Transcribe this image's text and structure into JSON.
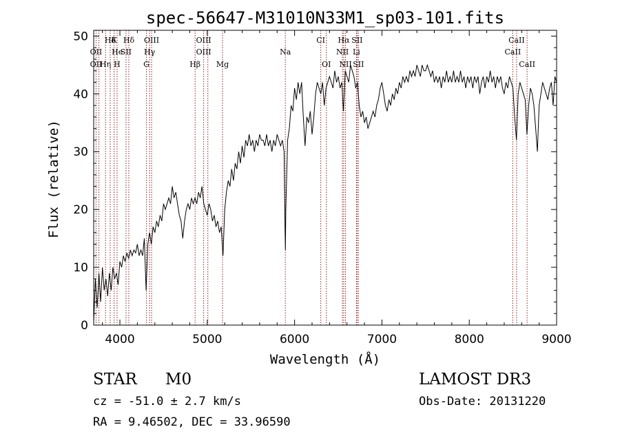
{
  "chart_data": {
    "type": "line",
    "title": "spec-56647-M31010N33M1_sp03-101.fits",
    "xlabel": "Wavelength (Å)",
    "ylabel": "Flux (relative)",
    "xlim": [
      3700,
      9000
    ],
    "ylim": [
      0,
      51
    ],
    "x_ticks": [
      4000,
      5000,
      6000,
      7000,
      8000,
      9000
    ],
    "y_ticks": [
      0,
      10,
      20,
      30,
      40,
      50
    ],
    "grid": false,
    "line_color": "#000000",
    "marker_color": "#8b1a1a",
    "series": [
      {
        "points": [
          [
            3700,
            0.5
          ],
          [
            3720,
            8
          ],
          [
            3740,
            3
          ],
          [
            3760,
            9
          ],
          [
            3780,
            4
          ],
          [
            3800,
            10
          ],
          [
            3820,
            6
          ],
          [
            3840,
            8
          ],
          [
            3860,
            5
          ],
          [
            3880,
            9
          ],
          [
            3900,
            6
          ],
          [
            3920,
            10
          ],
          [
            3940,
            8
          ],
          [
            3960,
            9
          ],
          [
            3980,
            7
          ],
          [
            4000,
            11
          ],
          [
            4020,
            10
          ],
          [
            4040,
            12
          ],
          [
            4060,
            11
          ],
          [
            4080,
            12.5
          ],
          [
            4100,
            11.5
          ],
          [
            4120,
            13
          ],
          [
            4140,
            12
          ],
          [
            4160,
            13
          ],
          [
            4180,
            12.5
          ],
          [
            4200,
            14
          ],
          [
            4220,
            12
          ],
          [
            4240,
            13
          ],
          [
            4260,
            12
          ],
          [
            4280,
            15
          ],
          [
            4300,
            6
          ],
          [
            4320,
            14
          ],
          [
            4340,
            16
          ],
          [
            4360,
            14
          ],
          [
            4380,
            17
          ],
          [
            4400,
            16
          ],
          [
            4420,
            18
          ],
          [
            4440,
            17
          ],
          [
            4460,
            19
          ],
          [
            4480,
            18
          ],
          [
            4500,
            21
          ],
          [
            4520,
            20
          ],
          [
            4540,
            21
          ],
          [
            4560,
            22
          ],
          [
            4580,
            21
          ],
          [
            4600,
            24
          ],
          [
            4620,
            22
          ],
          [
            4640,
            23
          ],
          [
            4660,
            21
          ],
          [
            4680,
            19
          ],
          [
            4700,
            18
          ],
          [
            4720,
            15
          ],
          [
            4740,
            18
          ],
          [
            4760,
            20
          ],
          [
            4780,
            21
          ],
          [
            4800,
            20
          ],
          [
            4820,
            22
          ],
          [
            4840,
            21
          ],
          [
            4860,
            22
          ],
          [
            4880,
            21
          ],
          [
            4900,
            23
          ],
          [
            4920,
            22
          ],
          [
            4940,
            24
          ],
          [
            4960,
            21
          ],
          [
            4980,
            20
          ],
          [
            5000,
            19
          ],
          [
            5020,
            21
          ],
          [
            5040,
            20
          ],
          [
            5060,
            18
          ],
          [
            5080,
            19
          ],
          [
            5100,
            17
          ],
          [
            5120,
            18
          ],
          [
            5140,
            16
          ],
          [
            5160,
            17
          ],
          [
            5180,
            12
          ],
          [
            5200,
            20
          ],
          [
            5220,
            23
          ],
          [
            5240,
            25
          ],
          [
            5260,
            24
          ],
          [
            5280,
            27
          ],
          [
            5300,
            25
          ],
          [
            5320,
            28
          ],
          [
            5340,
            27
          ],
          [
            5360,
            30
          ],
          [
            5380,
            28
          ],
          [
            5400,
            31
          ],
          [
            5420,
            29
          ],
          [
            5440,
            32
          ],
          [
            5460,
            31
          ],
          [
            5480,
            33
          ],
          [
            5500,
            31
          ],
          [
            5520,
            32
          ],
          [
            5540,
            30
          ],
          [
            5560,
            32
          ],
          [
            5580,
            31
          ],
          [
            5600,
            33
          ],
          [
            5620,
            32
          ],
          [
            5640,
            32
          ],
          [
            5660,
            31
          ],
          [
            5680,
            33
          ],
          [
            5700,
            31
          ],
          [
            5720,
            32
          ],
          [
            5740,
            30
          ],
          [
            5760,
            32
          ],
          [
            5780,
            31
          ],
          [
            5800,
            33
          ],
          [
            5820,
            32
          ],
          [
            5840,
            31
          ],
          [
            5860,
            32
          ],
          [
            5880,
            30
          ],
          [
            5890,
            17
          ],
          [
            5895,
            13
          ],
          [
            5900,
            20
          ],
          [
            5920,
            32
          ],
          [
            5940,
            34
          ],
          [
            5960,
            38
          ],
          [
            5980,
            37
          ],
          [
            6000,
            41
          ],
          [
            6020,
            39
          ],
          [
            6040,
            42
          ],
          [
            6060,
            40
          ],
          [
            6080,
            42
          ],
          [
            6100,
            36
          ],
          [
            6120,
            31
          ],
          [
            6140,
            36
          ],
          [
            6160,
            35
          ],
          [
            6180,
            37
          ],
          [
            6200,
            33
          ],
          [
            6220,
            36
          ],
          [
            6240,
            40
          ],
          [
            6260,
            42
          ],
          [
            6280,
            41
          ],
          [
            6300,
            40
          ],
          [
            6320,
            42
          ],
          [
            6340,
            38
          ],
          [
            6360,
            41
          ],
          [
            6380,
            42
          ],
          [
            6400,
            43
          ],
          [
            6420,
            42
          ],
          [
            6440,
            41
          ],
          [
            6460,
            44
          ],
          [
            6480,
            42
          ],
          [
            6500,
            43
          ],
          [
            6520,
            41
          ],
          [
            6540,
            42
          ],
          [
            6560,
            37
          ],
          [
            6580,
            44
          ],
          [
            6600,
            43
          ],
          [
            6620,
            42
          ],
          [
            6640,
            45
          ],
          [
            6660,
            44
          ],
          [
            6680,
            43
          ],
          [
            6700,
            41
          ],
          [
            6720,
            42
          ],
          [
            6740,
            38
          ],
          [
            6760,
            36
          ],
          [
            6780,
            37
          ],
          [
            6800,
            35
          ],
          [
            6820,
            36
          ],
          [
            6840,
            34
          ],
          [
            6860,
            35
          ],
          [
            6880,
            36
          ],
          [
            6900,
            37
          ],
          [
            6920,
            36
          ],
          [
            6940,
            38
          ],
          [
            6960,
            39
          ],
          [
            6980,
            41
          ],
          [
            7000,
            42
          ],
          [
            7020,
            40
          ],
          [
            7040,
            38
          ],
          [
            7060,
            37
          ],
          [
            7080,
            39
          ],
          [
            7100,
            38
          ],
          [
            7120,
            40
          ],
          [
            7140,
            39
          ],
          [
            7160,
            41
          ],
          [
            7180,
            40
          ],
          [
            7200,
            42
          ],
          [
            7220,
            41
          ],
          [
            7240,
            43
          ],
          [
            7260,
            42
          ],
          [
            7280,
            43
          ],
          [
            7300,
            42
          ],
          [
            7320,
            44
          ],
          [
            7340,
            43
          ],
          [
            7360,
            44
          ],
          [
            7380,
            43
          ],
          [
            7400,
            45
          ],
          [
            7420,
            44
          ],
          [
            7440,
            43
          ],
          [
            7460,
            45
          ],
          [
            7480,
            44
          ],
          [
            7500,
            44
          ],
          [
            7520,
            45
          ],
          [
            7540,
            44
          ],
          [
            7560,
            43
          ],
          [
            7580,
            44
          ],
          [
            7600,
            42
          ],
          [
            7620,
            43
          ],
          [
            7640,
            42
          ],
          [
            7660,
            43
          ],
          [
            7680,
            41
          ],
          [
            7700,
            43
          ],
          [
            7720,
            42
          ],
          [
            7740,
            44
          ],
          [
            7760,
            42
          ],
          [
            7780,
            43
          ],
          [
            7800,
            42
          ],
          [
            7820,
            44
          ],
          [
            7840,
            42
          ],
          [
            7860,
            43
          ],
          [
            7880,
            42
          ],
          [
            7900,
            44
          ],
          [
            7920,
            42
          ],
          [
            7940,
            43
          ],
          [
            7960,
            41
          ],
          [
            7980,
            43
          ],
          [
            8000,
            42
          ],
          [
            8020,
            43
          ],
          [
            8040,
            41
          ],
          [
            8060,
            43
          ],
          [
            8080,
            42
          ],
          [
            8100,
            43
          ],
          [
            8120,
            40
          ],
          [
            8140,
            42
          ],
          [
            8160,
            43
          ],
          [
            8180,
            41
          ],
          [
            8200,
            43
          ],
          [
            8220,
            42
          ],
          [
            8240,
            44
          ],
          [
            8260,
            42
          ],
          [
            8280,
            43
          ],
          [
            8300,
            41
          ],
          [
            8320,
            43
          ],
          [
            8340,
            42
          ],
          [
            8360,
            43
          ],
          [
            8380,
            41
          ],
          [
            8400,
            40
          ],
          [
            8420,
            42
          ],
          [
            8440,
            41
          ],
          [
            8460,
            43
          ],
          [
            8480,
            42
          ],
          [
            8500,
            41
          ],
          [
            8520,
            36
          ],
          [
            8540,
            32
          ],
          [
            8560,
            40
          ],
          [
            8580,
            42
          ],
          [
            8600,
            41
          ],
          [
            8620,
            40
          ],
          [
            8640,
            39
          ],
          [
            8660,
            33
          ],
          [
            8680,
            38
          ],
          [
            8700,
            41
          ],
          [
            8720,
            40
          ],
          [
            8740,
            38
          ],
          [
            8760,
            34
          ],
          [
            8780,
            30
          ],
          [
            8800,
            38
          ],
          [
            8820,
            40
          ],
          [
            8840,
            42
          ],
          [
            8860,
            41
          ],
          [
            8880,
            40
          ],
          [
            8900,
            39
          ],
          [
            8920,
            41
          ],
          [
            8940,
            42
          ],
          [
            8960,
            38
          ],
          [
            8980,
            43
          ],
          [
            9000,
            42
          ]
        ]
      }
    ],
    "annotations": [
      {
        "label": "Hδ",
        "x": 3889,
        "row": 0
      },
      {
        "label": "OII",
        "x": 3727,
        "row": 1
      },
      {
        "label": "OII",
        "x": 3727,
        "row": 2
      },
      {
        "label": "K",
        "x": 3934,
        "row": 0
      },
      {
        "label": "He",
        "x": 3970,
        "row": 1
      },
      {
        "label": "Hη",
        "x": 3835,
        "row": 2
      },
      {
        "label": "Hδ",
        "x": 4102,
        "row": 0
      },
      {
        "label": "SII",
        "x": 4070,
        "row": 1
      },
      {
        "label": "H",
        "x": 3968,
        "row": 2
      },
      {
        "label": "OIII",
        "x": 4363,
        "row": 0
      },
      {
        "label": "Hγ",
        "x": 4340,
        "row": 1
      },
      {
        "label": "G",
        "x": 4304,
        "row": 2
      },
      {
        "label": "OIII",
        "x": 4959,
        "row": 0
      },
      {
        "label": "OIII",
        "x": 4959,
        "row": 1
      },
      {
        "label": "Hβ",
        "x": 4861,
        "row": 2
      },
      {
        "label": "Mg",
        "x": 5175,
        "row": 2
      },
      {
        "label": "Na",
        "x": 5894,
        "row": 1
      },
      {
        "label": "CI",
        "x": 6300,
        "row": 0
      },
      {
        "label": "OI",
        "x": 6364,
        "row": 2
      },
      {
        "label": "Hα",
        "x": 6563,
        "row": 0
      },
      {
        "label": "SII",
        "x": 6716,
        "row": 0
      },
      {
        "label": "NII",
        "x": 6548,
        "row": 1
      },
      {
        "label": "Li",
        "x": 6708,
        "row": 1
      },
      {
        "label": "NII",
        "x": 6583,
        "row": 2
      },
      {
        "label": "SII",
        "x": 6731,
        "row": 2
      },
      {
        "label": "CaII",
        "x": 8542,
        "row": 0
      },
      {
        "label": "CaII",
        "x": 8498,
        "row": 1
      },
      {
        "label": "CaII",
        "x": 8662,
        "row": 2
      }
    ],
    "marker_lines": [
      3727,
      3760,
      3835,
      3889,
      3934,
      3968,
      4070,
      4102,
      4304,
      4340,
      4363,
      4861,
      4959,
      5007,
      5175,
      5894,
      6300,
      6364,
      6548,
      6563,
      6583,
      6708,
      6716,
      6731,
      8498,
      8542,
      8662
    ]
  },
  "info": {
    "class": "STAR",
    "subclass": "M0",
    "survey": "LAMOST DR3",
    "cz": "cz = -51.0 ± 2.7 km/s",
    "obs_date": "Obs-Date: 20131220",
    "radec": "RA =   9.46502, DEC =  33.96590"
  }
}
